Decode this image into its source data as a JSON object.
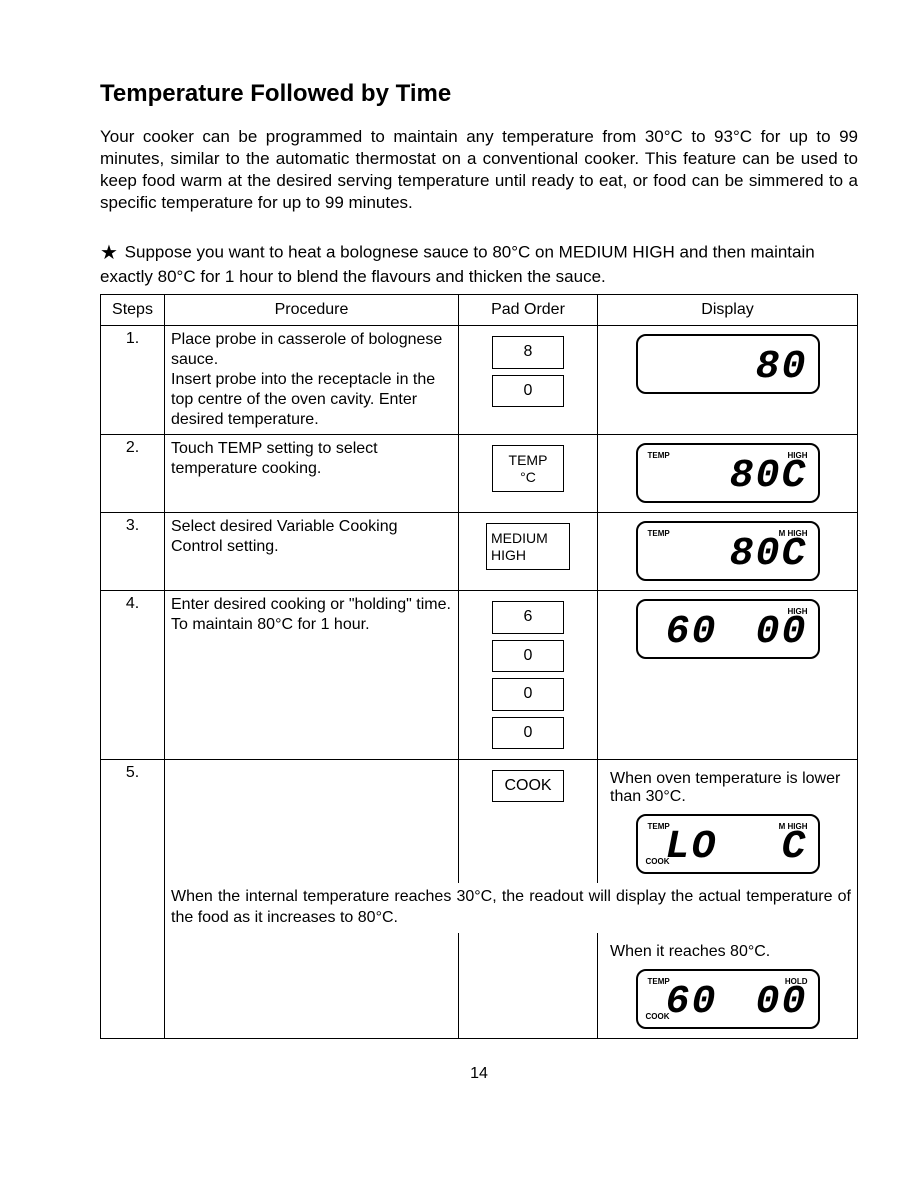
{
  "title": "Temperature Followed by Time",
  "intro": "Your cooker can be programmed to maintain any temperature from 30°C to 93°C for up to 99 minutes, similar to the automatic thermostat on a conventional cooker. This feature can be used to keep food warm at the desired serving temperature until ready to eat, or food can be simmered to a specific temperature for up to 99 minutes.",
  "example_prefix": "★",
  "example": "Suppose you want to heat a bolognese sauce to 80°C on MEDIUM HIGH and then maintain exactly 80°C for 1 hour to blend the flavours and thicken the sauce.",
  "headers": {
    "steps": "Steps",
    "procedure": "Procedure",
    "pad_order": "Pad Order",
    "display": "Display"
  },
  "rows": {
    "r1": {
      "num": "1.",
      "proc": "Place probe in casserole of bolognese sauce.\nInsert probe into the receptacle in the top centre of the oven cavity. Enter desired temperature.",
      "pads": [
        "8",
        "0"
      ],
      "display": {
        "big": "80"
      }
    },
    "r2": {
      "num": "2.",
      "proc": "Touch TEMP setting to select temperature cooking.",
      "pads": [
        "TEMP\n°C"
      ],
      "display": {
        "big": "80C",
        "tl": "TEMP",
        "tr": "HIGH"
      }
    },
    "r3": {
      "num": "3.",
      "proc": "Select desired Variable Cooking Control setting.",
      "pads": [
        "MEDIUM\nHIGH"
      ],
      "display": {
        "big": "80C",
        "tl": "TEMP",
        "tr": "M HIGH"
      }
    },
    "r4": {
      "num": "4.",
      "proc": "Enter desired cooking or \"holding\" time. To maintain 80°C for 1 hour.",
      "pads": [
        "6",
        "0",
        "0",
        "0"
      ],
      "display": {
        "left": "60",
        "big": "00",
        "tr": "HIGH"
      }
    },
    "r5": {
      "num": "5.",
      "pads": [
        "COOK"
      ],
      "note_top": "When oven temperature is lower than 30°C.",
      "display1": {
        "left": "LO",
        "big": "C",
        "tl": "TEMP",
        "tr": "M HIGH",
        "bl": "COOK"
      },
      "span_note": "When the internal temperature reaches 30°C, the readout will display the actual temperature of the food as it increases to 80°C.",
      "note_bottom": "When it reaches 80°C.",
      "display2": {
        "left": "60",
        "big": "00",
        "tl": "TEMP",
        "tr": "HOLD",
        "bl": "COOK"
      }
    }
  },
  "page_number": "14"
}
